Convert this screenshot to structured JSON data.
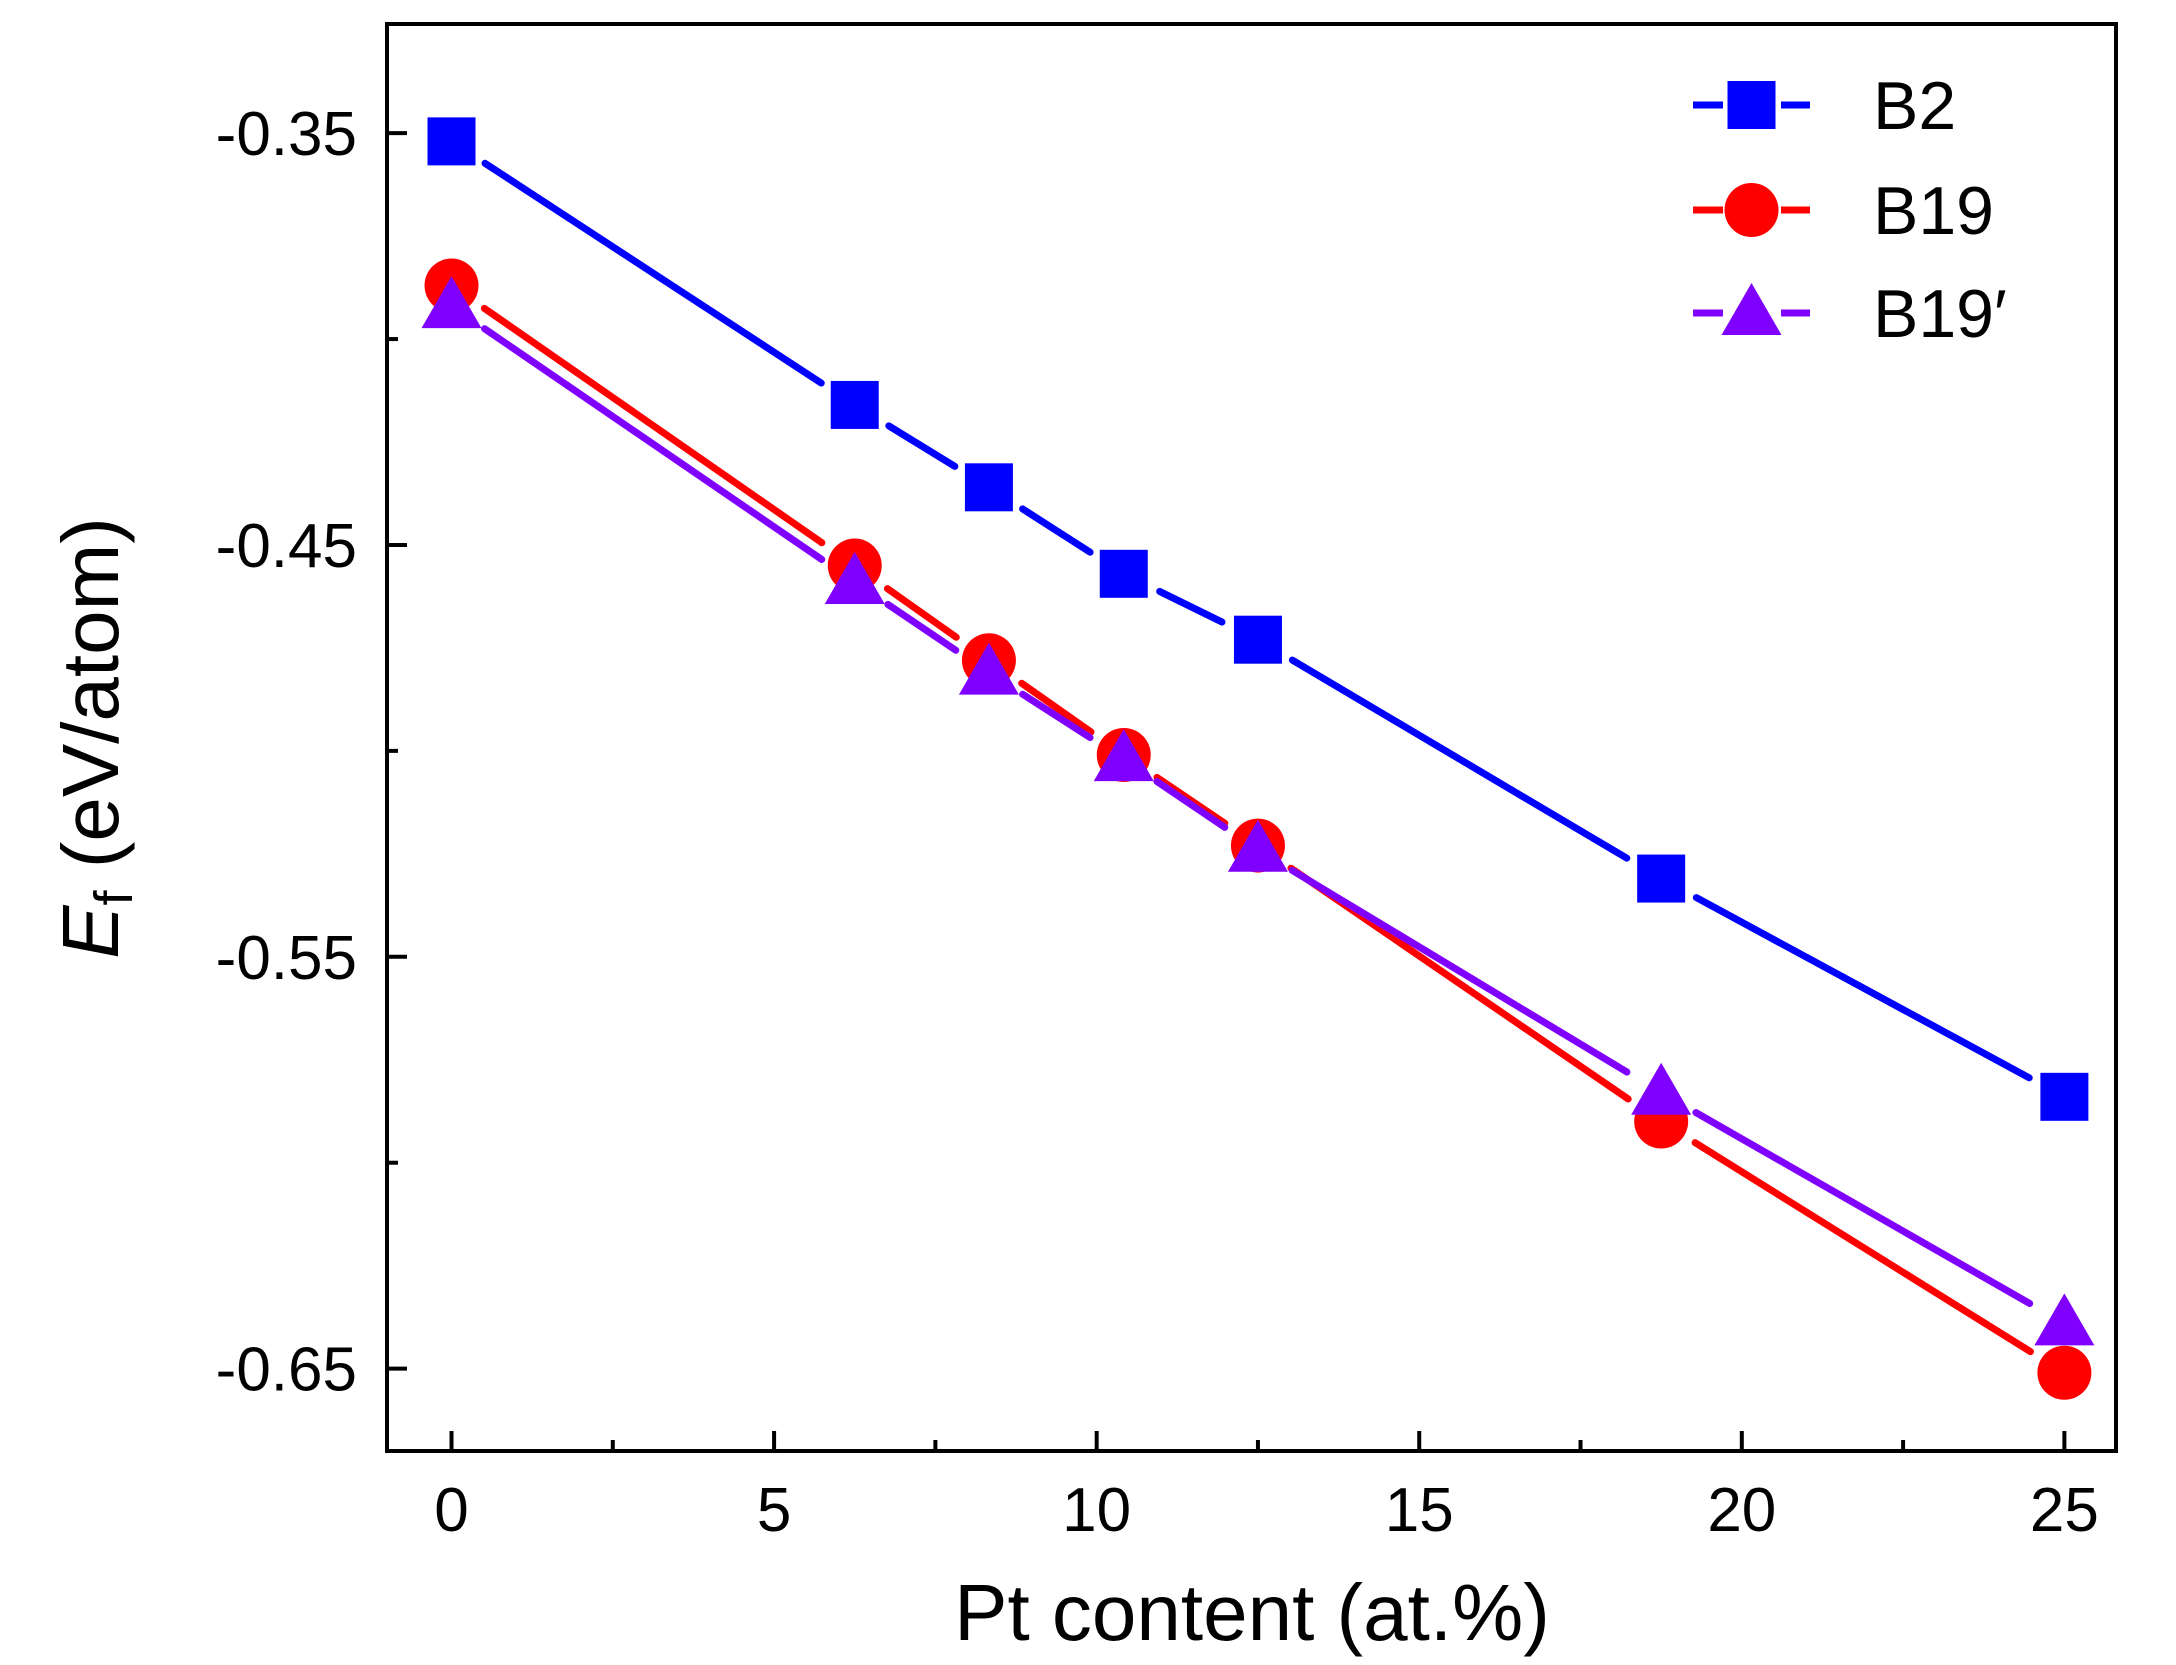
{
  "chart_data": {
    "type": "line",
    "title": "",
    "xlabel": "Pt content (at.%)",
    "ylabel_main": "E",
    "ylabel_sub": "f",
    "ylabel_rest": " (eV/atom)",
    "xlim": [
      -1,
      25.8
    ],
    "ylim": [
      -0.67,
      -0.3235
    ],
    "x_ticks": [
      0,
      5,
      10,
      15,
      20,
      25
    ],
    "x_tick_labels": [
      "0",
      "5",
      "10",
      "15",
      "20",
      "25"
    ],
    "x_minor_ticks": [
      2.5,
      7.5,
      12.5,
      17.5,
      22.5
    ],
    "y_ticks": [
      -0.35,
      -0.45,
      -0.55,
      -0.65
    ],
    "y_tick_labels": [
      "-0.35",
      "-0.45",
      "-0.55",
      "-0.65"
    ],
    "y_minor_ticks": [
      -0.4,
      -0.5,
      -0.6
    ],
    "grid": false,
    "legend_position": "top-right",
    "x": [
      0,
      6.25,
      8.33,
      10.42,
      12.5,
      18.75,
      25
    ],
    "series": [
      {
        "name": "B2",
        "marker": "square",
        "color": "#0000ff",
        "values": [
          -0.352,
          -0.416,
          -0.436,
          -0.457,
          -0.473,
          -0.531,
          -0.584
        ]
      },
      {
        "name": "B19",
        "marker": "circle",
        "color": "#ff0000",
        "values": [
          -0.387,
          -0.455,
          -0.478,
          -0.501,
          -0.523,
          -0.59,
          -0.651
        ]
      },
      {
        "name": "B19′",
        "marker": "triangle",
        "color": "#8000ff",
        "values": [
          -0.392,
          -0.459,
          -0.481,
          -0.502,
          -0.524,
          -0.583,
          -0.639
        ]
      }
    ]
  }
}
